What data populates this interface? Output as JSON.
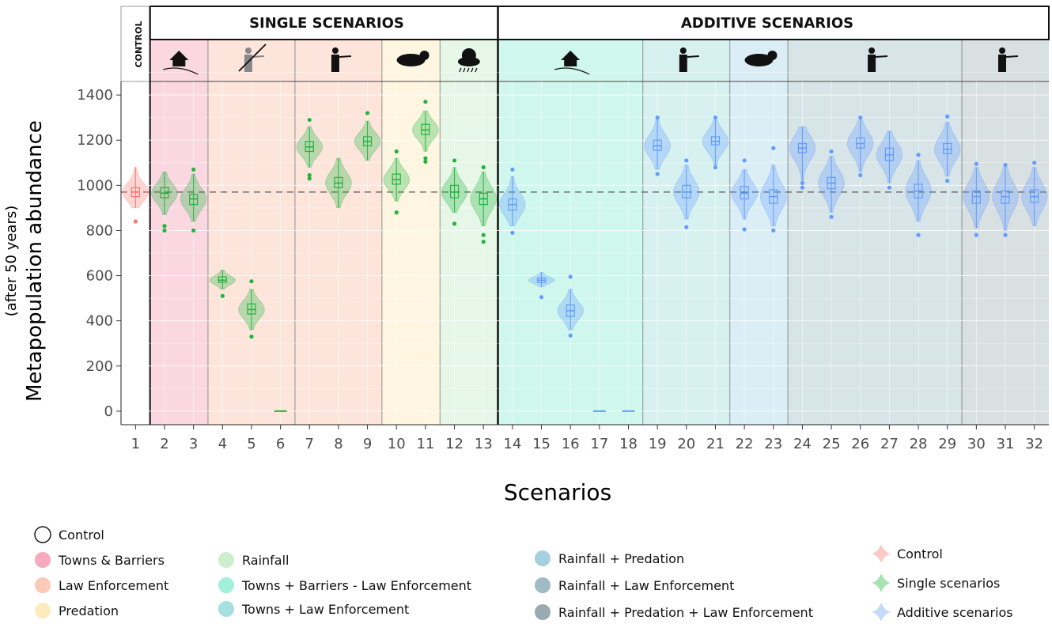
{
  "chart_data": {
    "type": "violin",
    "xlabel": "Scenarios",
    "ylabel": "Metapopulation abundance",
    "ylabel_sub": "(after 50 years)",
    "ylim": [
      -60,
      1460
    ],
    "y_ticks": [
      0,
      200,
      400,
      600,
      800,
      1000,
      1200,
      1400
    ],
    "reference_line": 970,
    "categories": [
      "1",
      "2",
      "3",
      "4",
      "5",
      "6",
      "7",
      "8",
      "9",
      "10",
      "11",
      "12",
      "13",
      "14",
      "15",
      "16",
      "17",
      "18",
      "19",
      "20",
      "21",
      "22",
      "23",
      "24",
      "25",
      "26",
      "27",
      "28",
      "29",
      "30",
      "31",
      "32"
    ],
    "group_labels": {
      "control": "CONTROL",
      "single": "SINGLE SCENARIOS",
      "additive": "ADDITIVE SCENARIOS"
    },
    "bands": [
      {
        "name": "Control",
        "from": 1,
        "to": 1,
        "color": "#ffffff"
      },
      {
        "name": "Towns & Barriers",
        "from": 2,
        "to": 3,
        "color": "#f7b6c8"
      },
      {
        "name": "Law Enforcement",
        "from": 4,
        "to": 6,
        "color": "#fbd0c0"
      },
      {
        "name": "Law Enforcement",
        "from": 7,
        "to": 9,
        "color": "#fbd0c0"
      },
      {
        "name": "Predation",
        "from": 10,
        "to": 11,
        "color": "#fdeec6"
      },
      {
        "name": "Rainfall",
        "from": 12,
        "to": 13,
        "color": "#d3f0d3"
      },
      {
        "name": "Towns + Barriers - Law Enforcement",
        "from": 14,
        "to": 18,
        "color": "#a9f0de"
      },
      {
        "name": "Towns + Law Enforcement",
        "from": 19,
        "to": 21,
        "color": "#b6e6e6"
      },
      {
        "name": "Rainfall + Predation",
        "from": 22,
        "to": 23,
        "color": "#bde0ec"
      },
      {
        "name": "Rainfall + Law Enforcement",
        "from": 24,
        "to": 29,
        "color": "#b7ced6"
      },
      {
        "name": "Rainfall + Predation + Law Enforcement",
        "from": 30,
        "to": 32,
        "color": "#b9c6cb"
      }
    ],
    "series_colors": {
      "control": "#f8766d",
      "single": "#22b43f",
      "additive": "#619cff"
    },
    "series": [
      {
        "name": "Control",
        "type": "control",
        "categories": [
          "1"
        ],
        "medians": [
          970
        ],
        "q1": [
          950
        ],
        "q3": [
          990
        ],
        "min": [
          900
        ],
        "max": [
          1080
        ],
        "outliers": [
          [
            840
          ]
        ]
      },
      {
        "name": "Single scenarios",
        "type": "single",
        "categories": [
          "2",
          "3",
          "4",
          "5",
          "6",
          "7",
          "8",
          "9",
          "10",
          "11",
          "12",
          "13"
        ],
        "medians": [
          965,
          940,
          580,
          450,
          0,
          1170,
          1010,
          1195,
          1025,
          1245,
          970,
          940
        ],
        "q1": [
          945,
          915,
          570,
          430,
          0,
          1150,
          990,
          1175,
          1005,
          1225,
          945,
          915
        ],
        "q3": [
          990,
          960,
          595,
          475,
          0,
          1195,
          1035,
          1215,
          1050,
          1270,
          1000,
          965
        ],
        "min": [
          870,
          840,
          540,
          360,
          0,
          1080,
          900,
          1110,
          930,
          1150,
          880,
          820
        ],
        "max": [
          1060,
          1050,
          625,
          540,
          2,
          1260,
          1120,
          1285,
          1120,
          1330,
          1080,
          1060
        ],
        "outliers": [
          [
            820,
            800
          ],
          [
            1070,
            800
          ],
          [
            510
          ],
          [
            575,
            330
          ],
          [],
          [
            1290,
            1045,
            1030
          ],
          [],
          [
            1320
          ],
          [
            1150,
            880
          ],
          [
            1370,
            1120,
            1105
          ],
          [
            1110,
            830
          ],
          [
            1080,
            780,
            750
          ]
        ]
      },
      {
        "name": "Additive scenarios",
        "type": "additive",
        "categories": [
          "14",
          "15",
          "16",
          "17",
          "18",
          "19",
          "20",
          "21",
          "22",
          "23",
          "24",
          "25",
          "26",
          "27",
          "28",
          "29",
          "30",
          "31",
          "32"
        ],
        "medians": [
          915,
          580,
          445,
          0,
          0,
          1175,
          970,
          1195,
          965,
          950,
          1165,
          1010,
          1185,
          1135,
          975,
          1160,
          950,
          950,
          950
        ],
        "q1": [
          890,
          570,
          420,
          0,
          0,
          1155,
          945,
          1180,
          940,
          920,
          1145,
          985,
          1165,
          1110,
          945,
          1140,
          920,
          920,
          925
        ],
        "q3": [
          940,
          590,
          470,
          0,
          0,
          1200,
          1000,
          1215,
          995,
          980,
          1185,
          1035,
          1210,
          1165,
          1005,
          1185,
          975,
          975,
          980
        ],
        "min": [
          820,
          550,
          360,
          0,
          0,
          1070,
          850,
          1090,
          850,
          820,
          1020,
          880,
          1060,
          1010,
          840,
          1040,
          810,
          800,
          820
        ],
        "max": [
          1040,
          615,
          540,
          2,
          2,
          1290,
          1090,
          1290,
          1070,
          1090,
          1260,
          1130,
          1290,
          1240,
          1110,
          1280,
          1080,
          1080,
          1080
        ],
        "outliers": [
          [
            1070,
            790
          ],
          [
            505
          ],
          [
            595,
            335
          ],
          [],
          [],
          [
            1300,
            1050
          ],
          [
            1110,
            815
          ],
          [
            1300,
            1080
          ],
          [
            1110,
            805
          ],
          [
            1165,
            800
          ],
          [
            1010,
            990
          ],
          [
            1150,
            860
          ],
          [
            1300,
            1045
          ],
          [
            990
          ],
          [
            1135,
            780
          ],
          [
            1305,
            1020
          ],
          [
            1095,
            780
          ],
          [
            1090,
            780
          ],
          [
            1100
          ]
        ]
      }
    ]
  },
  "legend": {
    "columns": [
      [
        {
          "label": "Control",
          "swatch": "#ffffff",
          "outline": true
        },
        {
          "label": "Towns & Barriers",
          "swatch": "#f7a9bf"
        },
        {
          "label": "Law Enforcement",
          "swatch": "#fbcab8"
        },
        {
          "label": "Predation",
          "swatch": "#fdebc0"
        }
      ],
      [
        {
          "label": "Rainfall",
          "swatch": "#cdeecb"
        },
        {
          "label": "Towns + Barriers - Law Enforcement",
          "swatch": "#a1f0d8"
        },
        {
          "label": "Towns + Law Enforcement",
          "swatch": "#a6e0e0"
        }
      ],
      [
        {
          "label": "Rainfall + Predation",
          "swatch": "#a5d0e0"
        },
        {
          "label": "Rainfall + Law Enforcement",
          "swatch": "#9fbcc6"
        },
        {
          "label": "Rainfall + Predation + Law Enforcement",
          "swatch": "#9aaab0"
        }
      ],
      [
        {
          "label": "Control",
          "violin": "#fbc9c6"
        },
        {
          "label": "Single scenarios",
          "violin": "#a7e2b3"
        },
        {
          "label": "Additive scenarios",
          "violin": "#c5d9fb"
        }
      ]
    ]
  },
  "icons": {
    "towns_barriers": "house-road-icon",
    "law_enforcement_removed": "ranger-crossed-icon",
    "law_enforcement": "ranger-pointing-icon",
    "predation": "lion-prey-icon",
    "rainfall": "rain-cloud-icon"
  }
}
